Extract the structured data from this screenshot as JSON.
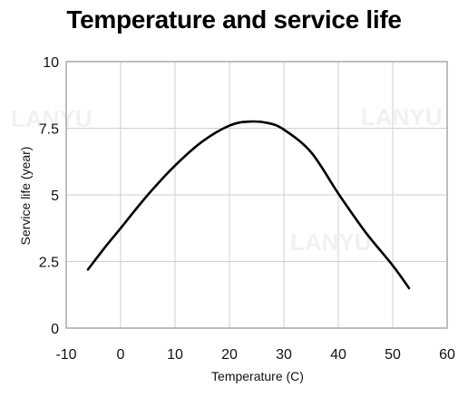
{
  "chart_data": {
    "type": "line",
    "title": "Temperature and service life",
    "xlabel": "Temperature (C)",
    "ylabel": "Service life (year)",
    "xlim": [
      -10,
      60
    ],
    "ylim": [
      0,
      10
    ],
    "x_ticks": [
      "-10",
      "0",
      "10",
      "20",
      "30",
      "40",
      "50",
      "60"
    ],
    "y_ticks": [
      "0",
      "2.5",
      "5",
      "7.5",
      "10"
    ],
    "grid": true,
    "series": [
      {
        "color": "#000000",
        "x": [
          -6,
          -3,
          0,
          5,
          10,
          15,
          20,
          23.5,
          27,
          30,
          35,
          40,
          45,
          50,
          53
        ],
        "y": [
          2.2,
          3.0,
          3.75,
          5.0,
          6.1,
          7.0,
          7.6,
          7.75,
          7.7,
          7.45,
          6.6,
          5.05,
          3.6,
          2.35,
          1.5
        ]
      }
    ]
  },
  "watermark": "LANYU"
}
